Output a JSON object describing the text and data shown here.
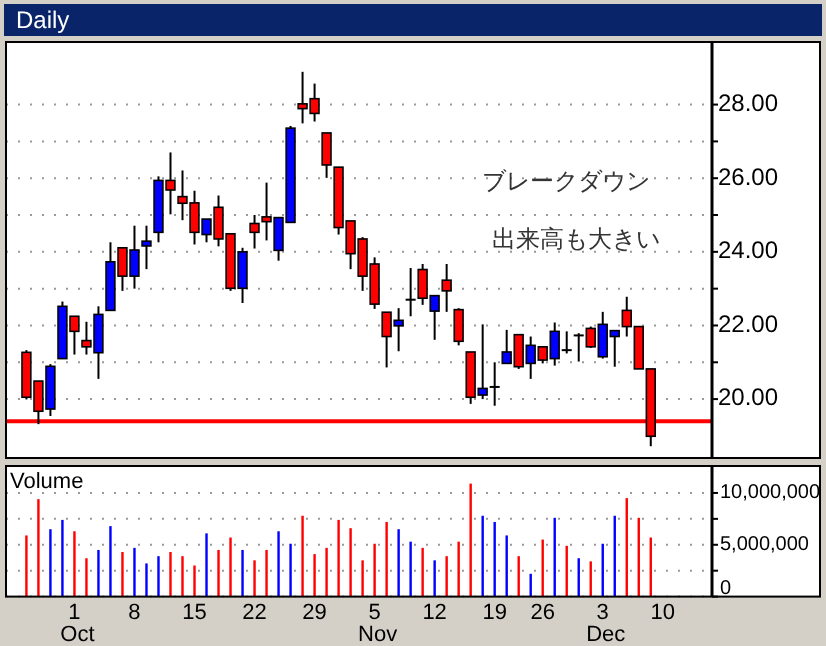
{
  "chart_data": [
    {
      "type": "candlestick",
      "title": "Daily",
      "categories": [
        null,
        null,
        null,
        null,
        null,
        null,
        null,
        null,
        null,
        null,
        null,
        null,
        null,
        null,
        null,
        null,
        null,
        null,
        null,
        null,
        null,
        null,
        null,
        null,
        null,
        null,
        null,
        null,
        null,
        null,
        null,
        null,
        null,
        null,
        null,
        null,
        null,
        null,
        null,
        null,
        null,
        null,
        null,
        null,
        null,
        null,
        null,
        null,
        null,
        null,
        null,
        null,
        null,
        null
      ],
      "ohlc": [
        [
          21.27,
          21.33,
          19.99,
          20.05
        ],
        [
          20.49,
          20.49,
          19.32,
          19.67
        ],
        [
          19.73,
          20.95,
          19.54,
          20.89
        ],
        [
          21.1,
          22.65,
          21.1,
          22.52
        ],
        [
          22.25,
          22.25,
          21.21,
          21.84
        ],
        [
          21.59,
          22.1,
          21.21,
          21.42
        ],
        [
          21.26,
          22.52,
          20.55,
          22.3
        ],
        [
          22.41,
          24.26,
          22.41,
          23.73
        ],
        [
          24.11,
          24.11,
          22.94,
          23.34
        ],
        [
          23.34,
          24.71,
          23.0,
          24.05
        ],
        [
          24.16,
          24.71,
          23.53,
          24.29
        ],
        [
          24.53,
          26.05,
          24.26,
          25.94
        ],
        [
          25.94,
          26.7,
          25.02,
          25.68
        ],
        [
          25.5,
          26.21,
          24.86,
          25.32
        ],
        [
          25.33,
          25.66,
          24.2,
          24.53
        ],
        [
          24.47,
          24.89,
          24.26,
          24.89
        ],
        [
          25.21,
          25.53,
          24.15,
          24.35
        ],
        [
          24.49,
          24.49,
          22.94,
          23.01
        ],
        [
          23.01,
          24.11,
          22.61,
          24.0
        ],
        [
          24.77,
          25.0,
          24.09,
          24.53
        ],
        [
          24.95,
          25.88,
          24.31,
          24.82
        ],
        [
          24.04,
          24.93,
          23.76,
          24.93
        ],
        [
          24.8,
          27.42,
          24.8,
          27.36
        ],
        [
          28.02,
          28.89,
          27.49,
          27.89
        ],
        [
          28.16,
          28.57,
          27.54,
          27.76
        ],
        [
          27.23,
          27.23,
          26.01,
          26.36
        ],
        [
          26.3,
          26.3,
          24.47,
          24.66
        ],
        [
          24.84,
          24.84,
          23.53,
          23.95
        ],
        [
          24.35,
          24.4,
          22.94,
          23.34
        ],
        [
          23.67,
          23.85,
          22.45,
          22.58
        ],
        [
          22.36,
          22.36,
          20.86,
          21.7
        ],
        [
          21.99,
          22.47,
          21.3,
          22.14
        ],
        [
          22.7,
          23.56,
          22.25,
          22.7
        ],
        [
          23.52,
          23.67,
          22.56,
          22.74
        ],
        [
          22.39,
          22.81,
          21.61,
          22.81
        ],
        [
          23.23,
          23.67,
          22.37,
          22.94
        ],
        [
          22.43,
          22.47,
          21.46,
          21.57
        ],
        [
          21.28,
          21.28,
          19.87,
          20.05
        ],
        [
          20.11,
          22.03,
          20.0,
          20.29
        ],
        [
          20.33,
          21.0,
          19.82,
          20.33
        ],
        [
          20.97,
          21.88,
          20.97,
          21.28
        ],
        [
          21.75,
          21.75,
          20.82,
          20.88
        ],
        [
          20.97,
          21.7,
          20.55,
          21.46
        ],
        [
          21.42,
          21.42,
          20.97,
          21.06
        ],
        [
          21.1,
          22.08,
          20.91,
          21.84
        ],
        [
          21.33,
          21.84,
          21.24,
          21.33
        ],
        [
          21.73,
          21.79,
          21.02,
          21.73
        ],
        [
          21.92,
          21.97,
          21.39,
          21.42
        ],
        [
          21.15,
          22.37,
          21.1,
          22.03
        ],
        [
          21.7,
          21.86,
          20.88,
          21.86
        ],
        [
          22.41,
          22.78,
          21.7,
          21.97
        ],
        [
          21.97,
          21.97,
          20.82,
          20.82
        ],
        [
          20.82,
          20.82,
          18.72,
          18.99
        ],
        null
      ],
      "colors": [
        "#ff0000",
        "#ff0000",
        "#0000ff",
        "#0000ff",
        "#ff0000",
        "#ff0000",
        "#0000ff",
        "#0000ff",
        "#ff0000",
        "#0000ff",
        "#0000ff",
        "#0000ff",
        "#ff0000",
        "#ff0000",
        "#ff0000",
        "#0000ff",
        "#ff0000",
        "#ff0000",
        "#0000ff",
        "#ff0000",
        "#ff0000",
        "#0000ff",
        "#0000ff",
        "#ff0000",
        "#ff0000",
        "#ff0000",
        "#ff0000",
        "#ff0000",
        "#ff0000",
        "#ff0000",
        "#ff0000",
        "#0000ff",
        "#000000",
        "#ff0000",
        "#0000ff",
        "#ff0000",
        "#ff0000",
        "#ff0000",
        "#0000ff",
        "#000000",
        "#0000ff",
        "#ff0000",
        "#0000ff",
        "#ff0000",
        "#0000ff",
        "#000000",
        "#000000",
        "#ff0000",
        "#0000ff",
        "#0000ff",
        "#ff0000",
        "#ff0000",
        "#ff0000",
        null
      ],
      "ylim": [
        18.4,
        29.7
      ],
      "yticks": [
        {
          "value": 20,
          "label": "20.00"
        },
        {
          "value": 21,
          "label": null
        },
        {
          "value": 22,
          "label": "22.00"
        },
        {
          "value": 23,
          "label": null
        },
        {
          "value": 24,
          "label": "24.00"
        },
        {
          "value": 25,
          "label": null
        },
        {
          "value": 26,
          "label": "26.00"
        },
        {
          "value": 27,
          "label": null
        },
        {
          "value": 28,
          "label": "28.00"
        }
      ],
      "grid": "y",
      "tick_labels": "y",
      "ref_lines": [
        {
          "axis": "y",
          "value": 19.4,
          "color": "#ff0000",
          "line_style": "solid"
        }
      ],
      "annotations": [
        "ブレークダウン",
        "出来高も大きい"
      ]
    },
    {
      "type": "bar",
      "title": "Volume",
      "categories": [
        null,
        null,
        null,
        null,
        "1 Oct",
        null,
        null,
        null,
        null,
        "8",
        null,
        null,
        null,
        null,
        "15",
        null,
        null,
        null,
        null,
        "22",
        null,
        null,
        null,
        null,
        "29",
        null,
        null,
        null,
        null,
        "5 Nov",
        null,
        null,
        null,
        null,
        "12",
        null,
        null,
        null,
        null,
        "19",
        null,
        null,
        null,
        "26",
        null,
        null,
        null,
        null,
        "3 Dec",
        null,
        null,
        null,
        null,
        "10"
      ],
      "values": [
        5900000,
        9400000,
        6500000,
        7400000,
        6300000,
        3700000,
        4500000,
        6800000,
        4300000,
        4700000,
        3200000,
        3900000,
        4300000,
        3900000,
        3000000,
        6100000,
        4500000,
        5700000,
        4500000,
        3500000,
        4500000,
        6300000,
        5100000,
        7800000,
        4100000,
        4700000,
        7400000,
        6600000,
        3500000,
        5100000,
        7200000,
        6500000,
        5300000,
        4700000,
        3500000,
        3900000,
        5300000,
        10900000,
        7800000,
        7200000,
        5900000,
        3900000,
        2200000,
        5500000,
        7600000,
        4900000,
        3700000,
        3400000,
        5100000,
        7800000,
        9500000,
        7600000,
        5700000,
        null
      ],
      "colors": [
        "#ff0000",
        "#ff0000",
        "#0000ff",
        "#0000ff",
        "#ff0000",
        "#ff0000",
        "#0000ff",
        "#0000ff",
        "#ff0000",
        "#0000ff",
        "#0000ff",
        "#0000ff",
        "#ff0000",
        "#ff0000",
        "#ff0000",
        "#0000ff",
        "#ff0000",
        "#ff0000",
        "#0000ff",
        "#ff0000",
        "#ff0000",
        "#0000ff",
        "#0000ff",
        "#ff0000",
        "#ff0000",
        "#ff0000",
        "#ff0000",
        "#ff0000",
        "#ff0000",
        "#ff0000",
        "#ff0000",
        "#0000ff",
        "#0000ff",
        "#ff0000",
        "#0000ff",
        "#ff0000",
        "#ff0000",
        "#ff0000",
        "#0000ff",
        "#0000ff",
        "#0000ff",
        "#ff0000",
        "#0000ff",
        "#ff0000",
        "#0000ff",
        "#ff0000",
        "#0000ff",
        "#ff0000",
        "#0000ff",
        "#0000ff",
        "#ff0000",
        "#ff0000",
        "#ff0000",
        null
      ],
      "ylim": [
        0,
        12600000
      ],
      "yticks": [
        {
          "value": 0,
          "label": "0"
        },
        {
          "value": 2500000,
          "label": null
        },
        {
          "value": 5000000,
          "label": "5,000,000"
        },
        {
          "value": 7500000,
          "label": null
        },
        {
          "value": 10000000,
          "label": "10,000,000"
        }
      ],
      "grid": "y"
    }
  ]
}
